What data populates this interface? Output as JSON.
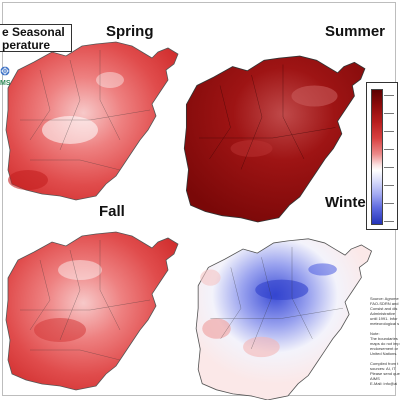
{
  "title": {
    "line1": "e Seasonal",
    "line2": "perature"
  },
  "logo": {
    "text": "MS",
    "icon": "un-emblem-icon"
  },
  "panels": [
    {
      "id": "spring",
      "label": "Spring",
      "palette": "warm"
    },
    {
      "id": "summer",
      "label": "Summer",
      "palette": "hot"
    },
    {
      "id": "fall",
      "label": "Fall",
      "palette": "warm"
    },
    {
      "id": "winter",
      "label": "Winter",
      "palette": "cool"
    }
  ],
  "legend": {
    "orientation": "vertical",
    "placement": "right",
    "colors": [
      "#5e0000",
      "#b81e1e",
      "#ec8a8a",
      "#ffffff",
      "#a2a9f2",
      "#2433b8"
    ]
  },
  "notes": {
    "lines": [
      "Source: Agrome",
      "FAO-SDRN and",
      "Consist and dis",
      "Administrative",
      "until 1991. Infor",
      "meteorological s",
      "",
      "Note:",
      "The boundaries ",
      "maps do not imp",
      "endorsement or ",
      "United Nations.",
      "",
      "Compiled from t",
      "sources: AI, IT",
      "Please send que",
      "AIMS",
      "E-Mail: info@ai"
    ]
  }
}
